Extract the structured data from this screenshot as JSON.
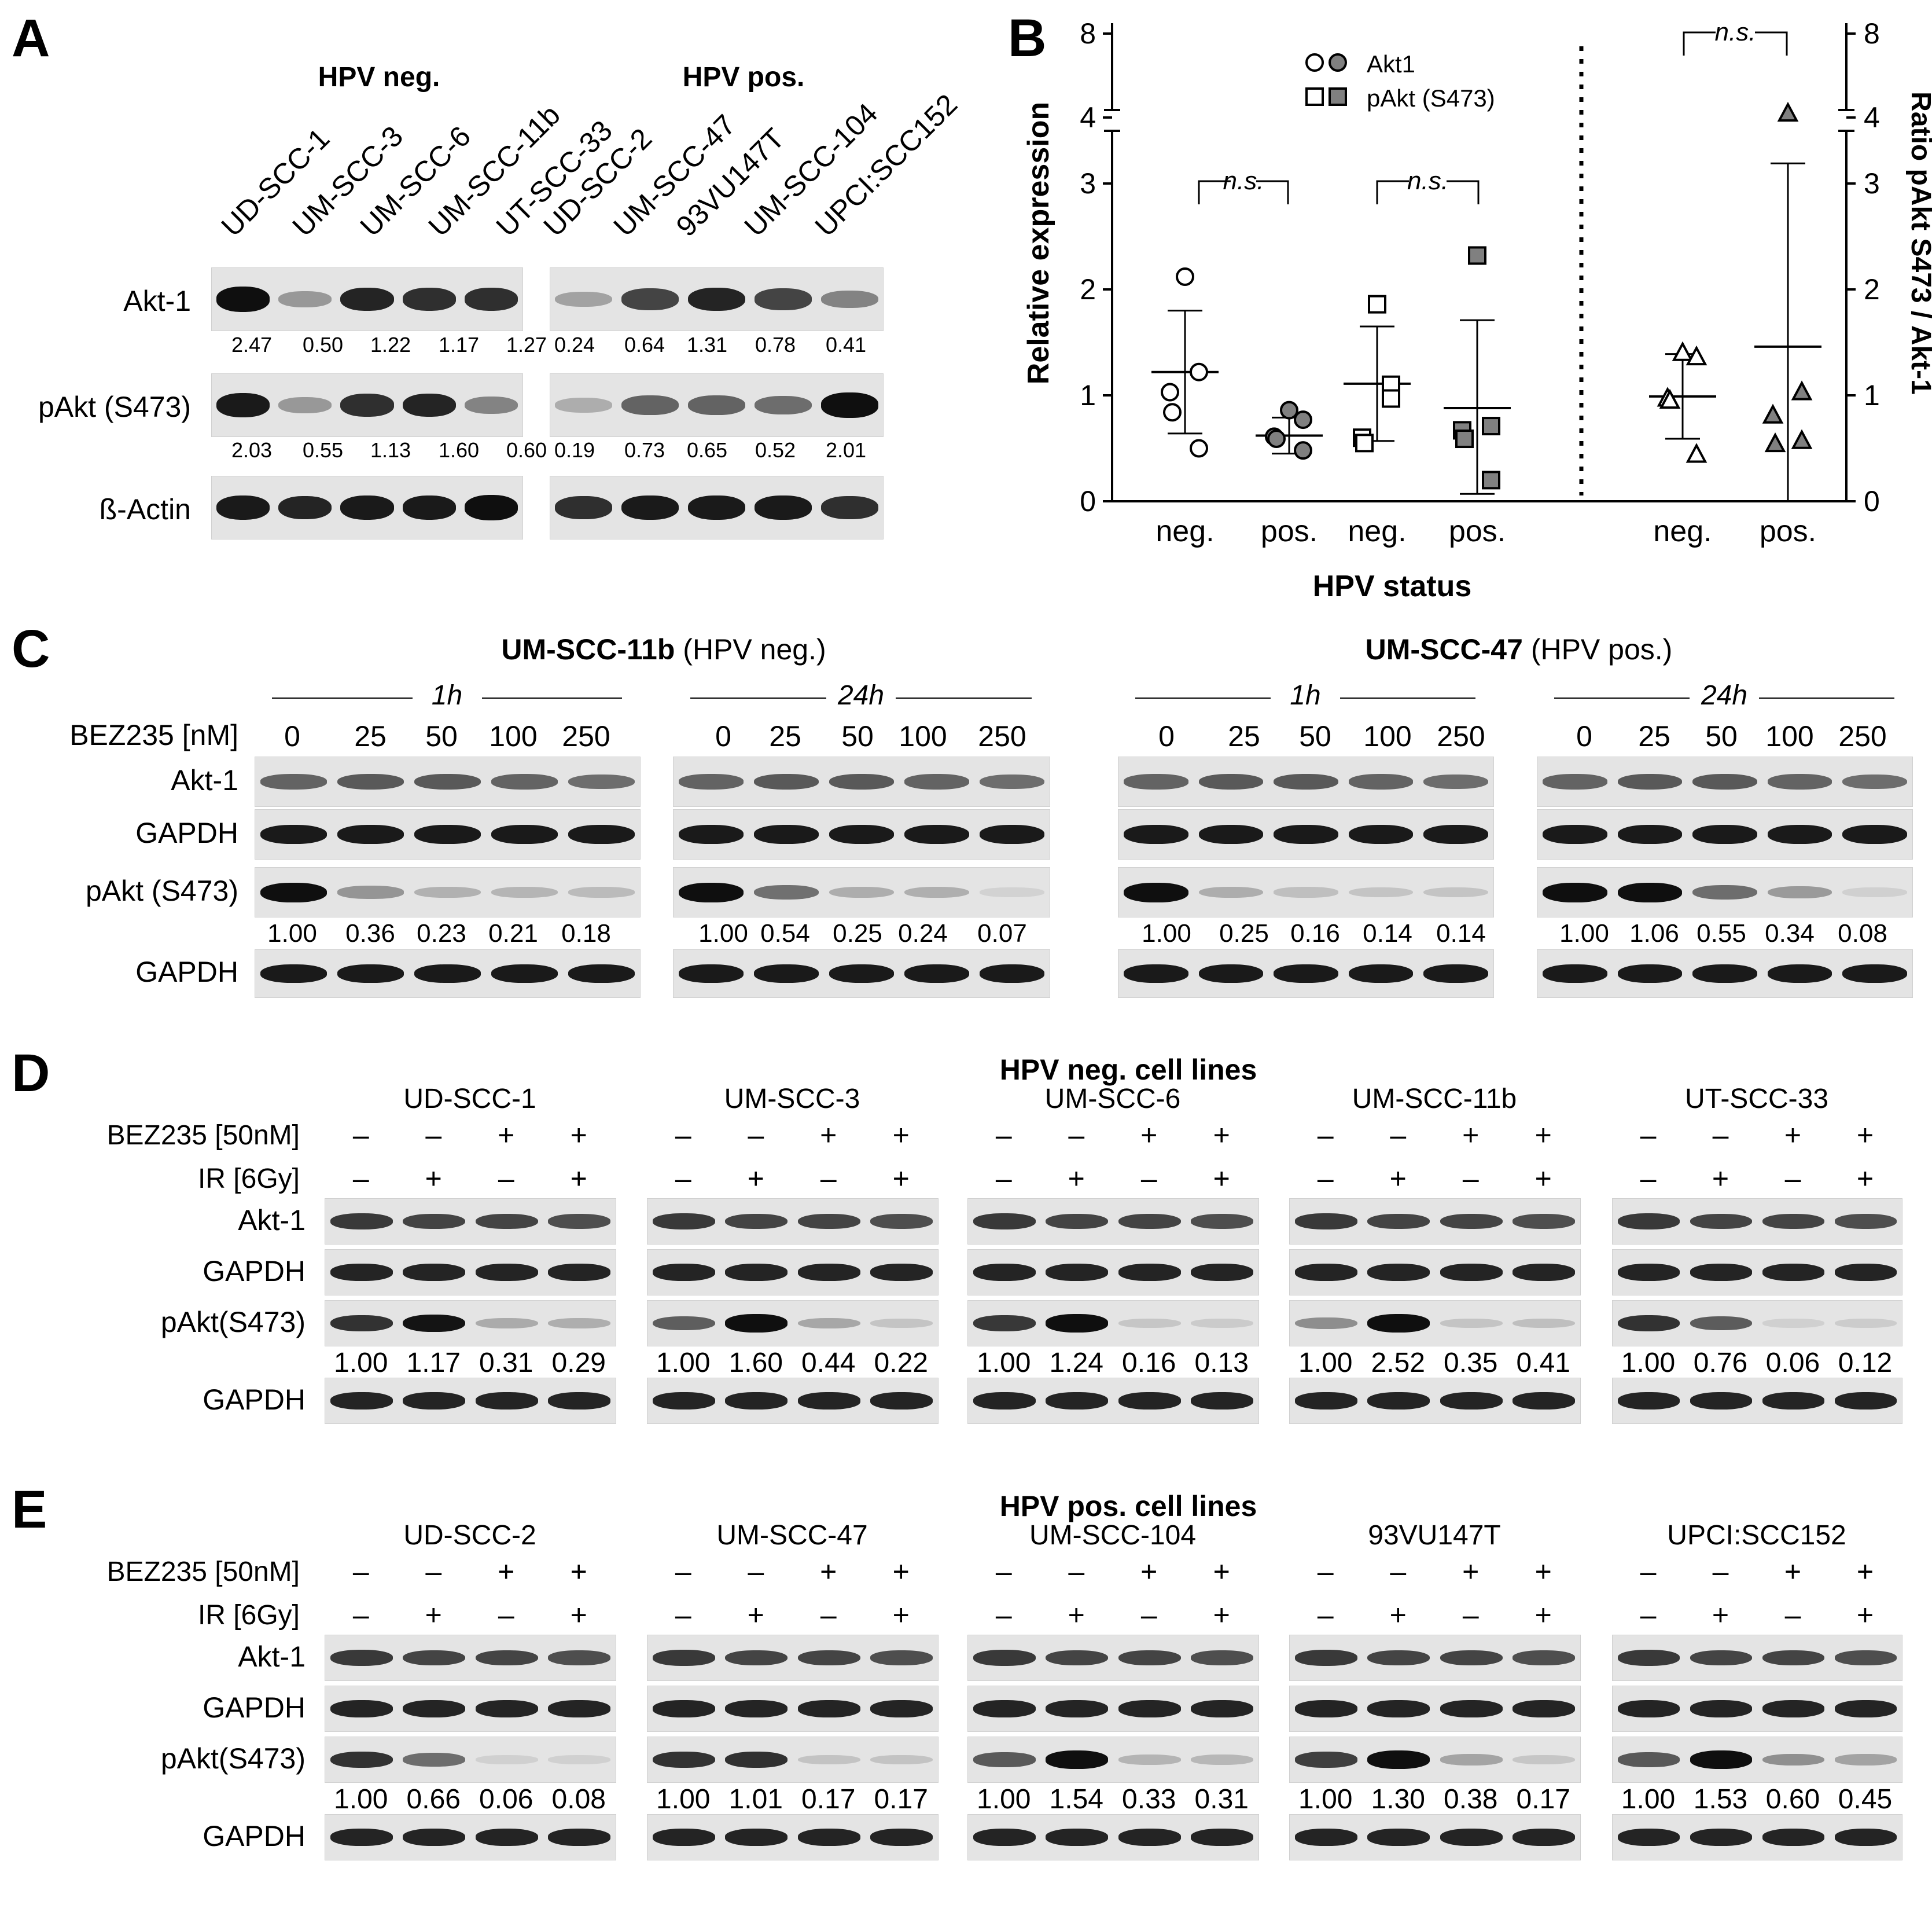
{
  "panels": {
    "A": {
      "letter": "A",
      "groups": [
        "HPV neg.",
        "HPV pos."
      ],
      "cell_lines": [
        "UD-SCC-1",
        "UM-SCC-3",
        "UM-SCC-6",
        "UM-SCC-11b",
        "UT-SCC-33",
        "UD-SCC-2",
        "UM-SCC-47",
        "93VU147T",
        "UM-SCC-104",
        "UPCI:SCC152"
      ],
      "rows": [
        {
          "label": "Akt-1",
          "values": [
            "2.47",
            "0.50",
            "1.22",
            "1.17",
            "1.27",
            "0.24",
            "0.64",
            "1.31",
            "0.78",
            "0.41"
          ],
          "levels": [
            1.0,
            0.35,
            0.9,
            0.85,
            0.85,
            0.3,
            0.75,
            0.9,
            0.75,
            0.45
          ]
        },
        {
          "label": "pAkt (S473)",
          "values": [
            "2.03",
            "0.55",
            "1.13",
            "1.60",
            "0.60",
            "0.19",
            "0.73",
            "0.65",
            "0.52",
            "2.01"
          ],
          "levels": [
            0.95,
            0.35,
            0.85,
            0.9,
            0.45,
            0.25,
            0.6,
            0.6,
            0.55,
            1.0
          ]
        },
        {
          "label": "ß-Actin",
          "values": [],
          "levels": [
            0.95,
            0.9,
            0.95,
            0.95,
            1.0,
            0.85,
            0.95,
            0.95,
            0.95,
            0.85
          ]
        }
      ]
    },
    "B": {
      "letter": "B",
      "xlabel": "HPV status",
      "ylabel_left": "Relative expression",
      "ylabel_right": "Ratio pAkt S473 / Akt-1",
      "legend": [
        {
          "symbols": "○●",
          "label": "Akt1"
        },
        {
          "symbols": "□■",
          "label": "pAkt (S473)"
        }
      ],
      "ns": "n.s."
    },
    "C": {
      "letter": "C",
      "left_title": {
        "bold": "UM-SCC-11b",
        "normal": " (HPV neg.)"
      },
      "right_title": {
        "bold": "UM-SCC-47",
        "normal": " (HPV pos.)"
      },
      "dose_label": "BEZ235 [nM]",
      "doses": [
        "0",
        "25",
        "50",
        "100",
        "250"
      ],
      "times": [
        "1h",
        "24h",
        "1h",
        "24h"
      ],
      "row_labels": [
        "Akt-1",
        "GAPDH",
        "pAkt (S473)",
        "GAPDH"
      ],
      "quant": [
        [
          "1.00",
          "0.36",
          "0.23",
          "0.21",
          "0.18"
        ],
        [
          "1.00",
          "0.54",
          "0.25",
          "0.24",
          "0.07"
        ],
        [
          "1.00",
          "0.25",
          "0.16",
          "0.14",
          "0.14"
        ],
        [
          "1.00",
          "1.06",
          "0.55",
          "0.34",
          "0.08"
        ]
      ]
    },
    "D": {
      "letter": "D",
      "title": "HPV neg. cell lines",
      "cells": [
        "UD-SCC-1",
        "UM-SCC-3",
        "UM-SCC-6",
        "UM-SCC-11b",
        "UT-SCC-33"
      ],
      "bez_label": "BEZ235 [50nM]",
      "ir_label": "IR [6Gy]",
      "bez_signs": [
        "–",
        "–",
        "+",
        "+"
      ],
      "ir_signs": [
        "–",
        "+",
        "–",
        "+"
      ],
      "row_labels": [
        "Akt-1",
        "GAPDH",
        "pAkt(S473)",
        "GAPDH"
      ],
      "quant": [
        [
          "1.00",
          "1.17",
          "0.31",
          "0.29"
        ],
        [
          "1.00",
          "1.60",
          "0.44",
          "0.22"
        ],
        [
          "1.00",
          "1.24",
          "0.16",
          "0.13"
        ],
        [
          "1.00",
          "2.52",
          "0.35",
          "0.41"
        ],
        [
          "1.00",
          "0.76",
          "0.06",
          "0.12"
        ]
      ]
    },
    "E": {
      "letter": "E",
      "title": "HPV pos. cell lines",
      "cells": [
        "UD-SCC-2",
        "UM-SCC-47",
        "UM-SCC-104",
        "93VU147T",
        "UPCI:SCC152"
      ],
      "bez_label": "BEZ235 [50nM]",
      "ir_label": "IR [6Gy]",
      "bez_signs": [
        "–",
        "–",
        "+",
        "+"
      ],
      "ir_signs": [
        "–",
        "+",
        "–",
        "+"
      ],
      "row_labels": [
        "Akt-1",
        "GAPDH",
        "pAkt(S473)",
        "GAPDH"
      ],
      "quant": [
        [
          "1.00",
          "0.66",
          "0.06",
          "0.08"
        ],
        [
          "1.00",
          "1.01",
          "0.17",
          "0.17"
        ],
        [
          "1.00",
          "1.54",
          "0.33",
          "0.31"
        ],
        [
          "1.00",
          "1.30",
          "0.38",
          "0.17"
        ],
        [
          "1.00",
          "1.53",
          "0.60",
          "0.45"
        ]
      ]
    }
  },
  "chart_data": {
    "type": "scatter",
    "xlabel": "HPV status",
    "ylabel": "Relative expression",
    "ylabel_right": "Ratio pAkt S473 / Akt-1",
    "y_ticks": [
      "0",
      "1",
      "2",
      "3",
      "4",
      "8"
    ],
    "groups": [
      {
        "label": "neg.",
        "series": "Akt1",
        "hpv": "neg",
        "filled": false,
        "marker": "circle",
        "axis": "left",
        "points": [
          2.12,
          1.22,
          1.03,
          0.84,
          0.5
        ],
        "mean": 1.22,
        "sd_low": 0.64,
        "sd_high": 1.8
      },
      {
        "label": "pos.",
        "series": "Akt1",
        "hpv": "pos",
        "filled": true,
        "marker": "circle",
        "axis": "left",
        "points": [
          0.86,
          0.77,
          0.61,
          0.59,
          0.48
        ],
        "mean": 0.62,
        "sd_low": 0.45,
        "sd_high": 0.79
      },
      {
        "label": "neg.",
        "series": "pAkt (S473)",
        "hpv": "neg",
        "filled": false,
        "marker": "square",
        "axis": "left",
        "points": [
          1.86,
          1.1,
          0.6,
          0.55,
          0.97
        ],
        "mean": 1.11,
        "sd_low": 0.57,
        "sd_high": 1.65
      },
      {
        "label": "pos.",
        "series": "pAkt (S473)",
        "hpv": "pos",
        "filled": true,
        "marker": "square",
        "axis": "left",
        "points": [
          2.32,
          0.71,
          0.67,
          0.59,
          0.2
        ],
        "mean": 0.88,
        "sd_low": 0.07,
        "sd_high": 1.71
      },
      {
        "label": "neg.",
        "series": "Ratio",
        "hpv": "neg",
        "filled": false,
        "marker": "triangle",
        "axis": "right",
        "points": [
          1.4,
          1.36,
          0.97,
          0.95,
          0.44
        ],
        "mean": 0.99,
        "sd_low": 0.59,
        "sd_high": 1.39
      },
      {
        "label": "pos.",
        "series": "Ratio",
        "hpv": "pos",
        "filled": true,
        "marker": "triangle",
        "axis": "right",
        "points": [
          4.19,
          1.03,
          0.81,
          0.54,
          0.57
        ],
        "mean": 1.46,
        "sd_low": 0,
        "sd_high": 3.19
      }
    ]
  }
}
